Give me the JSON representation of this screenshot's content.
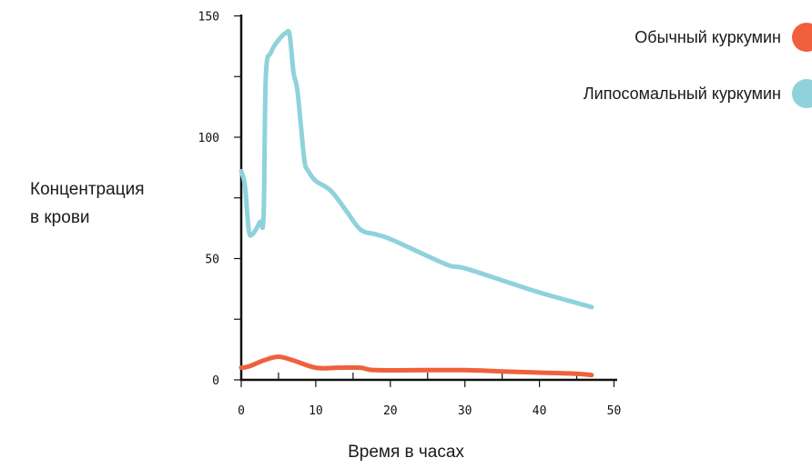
{
  "chart_data": {
    "type": "line",
    "title": "",
    "ylabel_line1": "Концентрация",
    "ylabel_line2": "в крови",
    "xlabel": "Время в часах",
    "xlim": [
      0,
      52
    ],
    "ylim": [
      0,
      150
    ],
    "x_ticks": [
      0,
      10,
      20,
      30,
      40,
      50
    ],
    "y_ticks": [
      0,
      50,
      100,
      150
    ],
    "legend_placement": "top-right",
    "grid": false,
    "series": [
      {
        "name": "Обычный куркумин",
        "color": "#f0603c",
        "x": [
          0,
          1,
          3,
          5,
          7,
          10,
          13,
          16,
          18,
          25,
          30,
          35,
          40,
          45,
          47
        ],
        "y": [
          5,
          5.5,
          8,
          9.5,
          8,
          5,
          5,
          5,
          4,
          4,
          4,
          3.5,
          3,
          2.5,
          2
        ]
      },
      {
        "name": "Липосомальный куркумин",
        "color": "#8fd2dc",
        "x": [
          0,
          0.5,
          1,
          1.5,
          2.5,
          3,
          3.3,
          4,
          5,
          6,
          6.5,
          7,
          7.5,
          8,
          8.5,
          9,
          10,
          12,
          14,
          16,
          18,
          20,
          25,
          28,
          30,
          35,
          40,
          47
        ],
        "y": [
          86,
          80,
          62,
          60,
          65,
          68,
          125,
          135,
          140,
          143,
          142,
          127,
          120,
          105,
          90,
          86,
          82,
          78,
          70,
          62,
          60,
          58,
          51,
          47,
          46,
          41,
          36,
          30
        ]
      }
    ]
  }
}
